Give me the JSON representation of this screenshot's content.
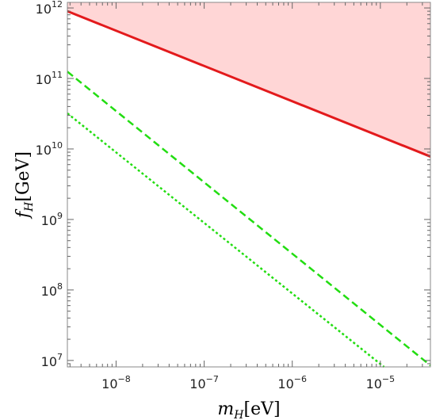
{
  "chart_data": {
    "type": "line",
    "title": "",
    "xlabel": {
      "var": "m",
      "sub": "H",
      "unit": "[eV]"
    },
    "ylabel": {
      "var": "f",
      "sub": "H",
      "unit": "[GeV]"
    },
    "xscale": "log",
    "yscale": "log",
    "xlim": [
      2.8e-09,
      3.7e-05
    ],
    "ylim": [
      8100000.0,
      1200000000000.0
    ],
    "grid": false,
    "legend": "none",
    "x_ticks": [
      {
        "value": 1e-08,
        "base": "10",
        "exp": "−8"
      },
      {
        "value": 1e-07,
        "base": "10",
        "exp": "−7"
      },
      {
        "value": 1e-06,
        "base": "10",
        "exp": "−6"
      },
      {
        "value": 1e-05,
        "base": "10",
        "exp": "−5"
      }
    ],
    "y_ticks": [
      {
        "value": 10000000.0,
        "base": "10",
        "exp": "7"
      },
      {
        "value": 100000000.0,
        "base": "10",
        "exp": "8"
      },
      {
        "value": 1000000000.0,
        "base": "10",
        "exp": "9"
      },
      {
        "value": 10000000000.0,
        "base": "10",
        "exp": "10"
      },
      {
        "value": 100000000000.0,
        "base": "10",
        "exp": "11"
      },
      {
        "value": 1000000000000.0,
        "base": "10",
        "exp": "12"
      }
    ],
    "shaded_region": {
      "color": "#ffd6d6",
      "bounded_below_by": "upper-limit",
      "description": "excluded region above solid red line"
    },
    "series": [
      {
        "id": "upper-limit",
        "style": "solid",
        "color": "#e31a1c",
        "x": [
          2.8e-09,
          3.7e-05
        ],
        "y": [
          900000000000.0,
          7800000000.0
        ]
      },
      {
        "id": "dashed",
        "style": "dashed",
        "color": "#22dd11",
        "x": [
          2.8e-09,
          3.7e-05
        ],
        "y": [
          125000000000.0,
          8500000.0
        ]
      },
      {
        "id": "dotted",
        "style": "dotted",
        "color": "#22dd11",
        "x": [
          2.8e-09,
          1.1e-05
        ],
        "y": [
          32000000000.0,
          8100000.0
        ]
      }
    ]
  }
}
